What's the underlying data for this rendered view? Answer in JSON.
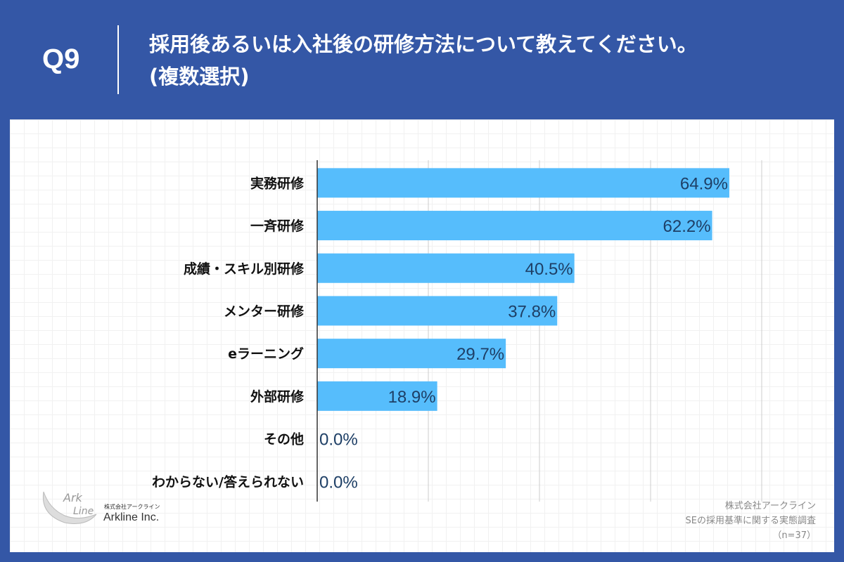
{
  "header": {
    "question": "Q9",
    "title_line1": "採用後あるいは入社後の研修方法について教えてください。",
    "title_line2": "(複数選択)"
  },
  "colors": {
    "frame": "#3457a6",
    "bar": "#56bdfc",
    "label": "#1e3f66"
  },
  "chart_data": {
    "type": "bar",
    "orientation": "horizontal",
    "categories": [
      "実務研修",
      "一斉研修",
      "成績・スキル別研修",
      "メンター研修",
      "eラーニング",
      "外部研修",
      "その他",
      "わからない/答えられない"
    ],
    "values": [
      64.9,
      62.2,
      40.5,
      37.8,
      29.7,
      18.9,
      0.0,
      0.0
    ],
    "value_labels": [
      "64.9%",
      "62.2%",
      "40.5%",
      "37.8%",
      "29.7%",
      "18.9%",
      "0.0%",
      "0.0%"
    ],
    "xlim": [
      0,
      70
    ],
    "gridlines": [
      17.5,
      35,
      52.5,
      70
    ],
    "grid": true
  },
  "logo": {
    "subtitle": "株式会社アークライン",
    "name": "Arkline Inc.",
    "mark_text": "Ark Line"
  },
  "source": {
    "company": "株式会社アークライン",
    "survey": "SEの採用基準に関する実態調査",
    "n": "（n=37）"
  }
}
